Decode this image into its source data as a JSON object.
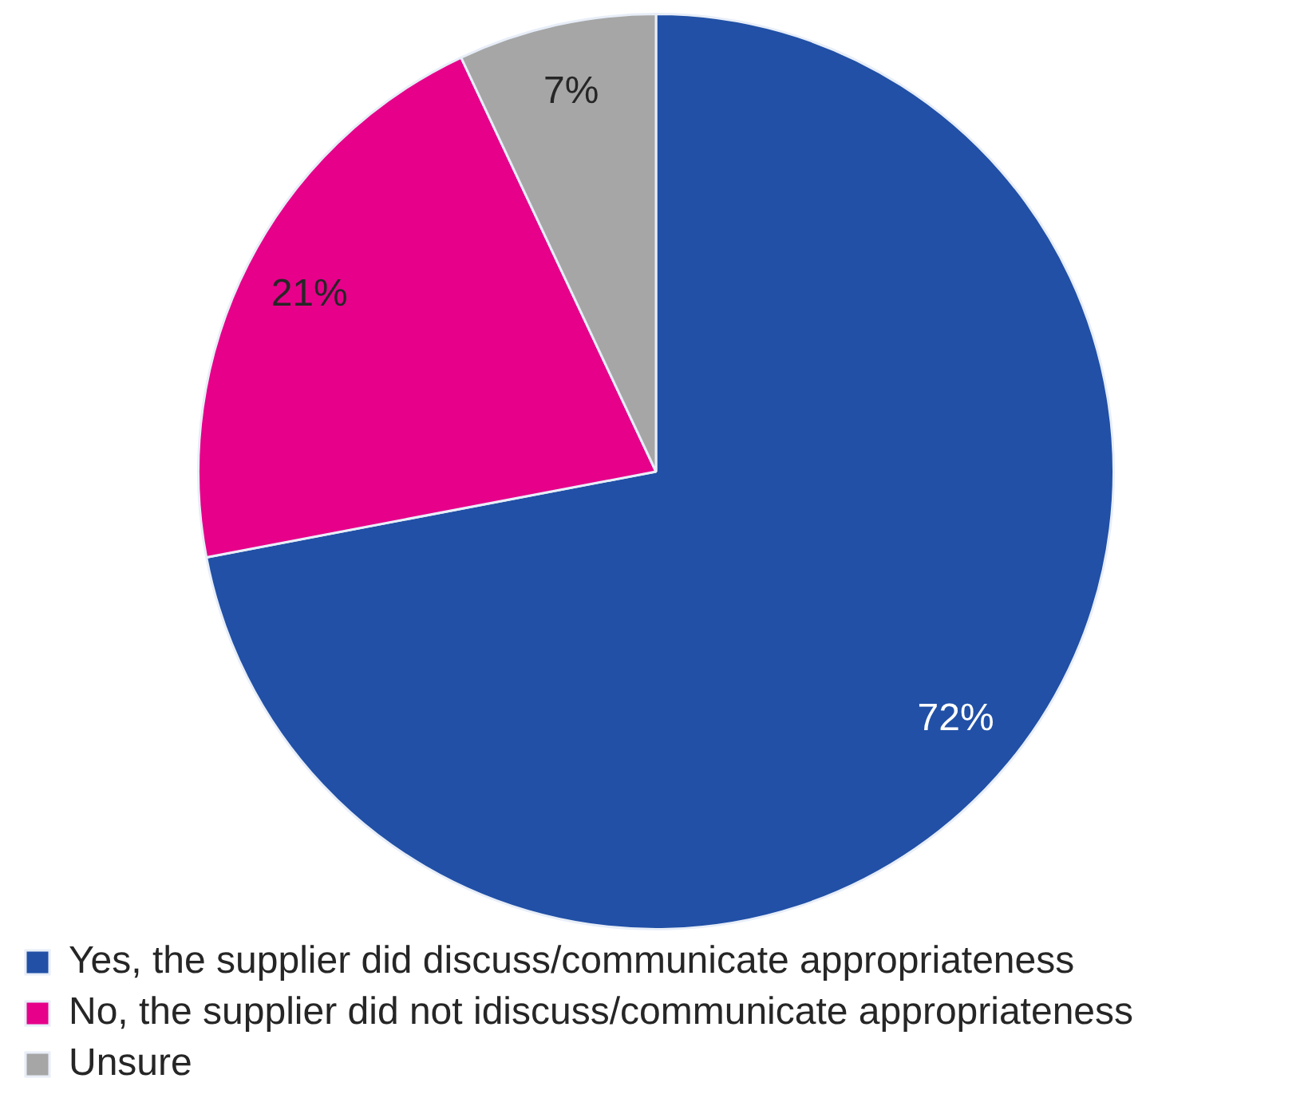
{
  "chart_data": {
    "type": "pie",
    "categories": [
      "Yes, the supplier did discuss/communicate appropriateness",
      "No, the supplier did not idiscuss/communicate appropriateness",
      "Unsure"
    ],
    "values": [
      72,
      21,
      7
    ],
    "colors": [
      "#2150a6",
      "#e6008a",
      "#a6a6a6"
    ],
    "value_labels": [
      "72%",
      "21%",
      "7%"
    ],
    "legend": "bottom"
  }
}
